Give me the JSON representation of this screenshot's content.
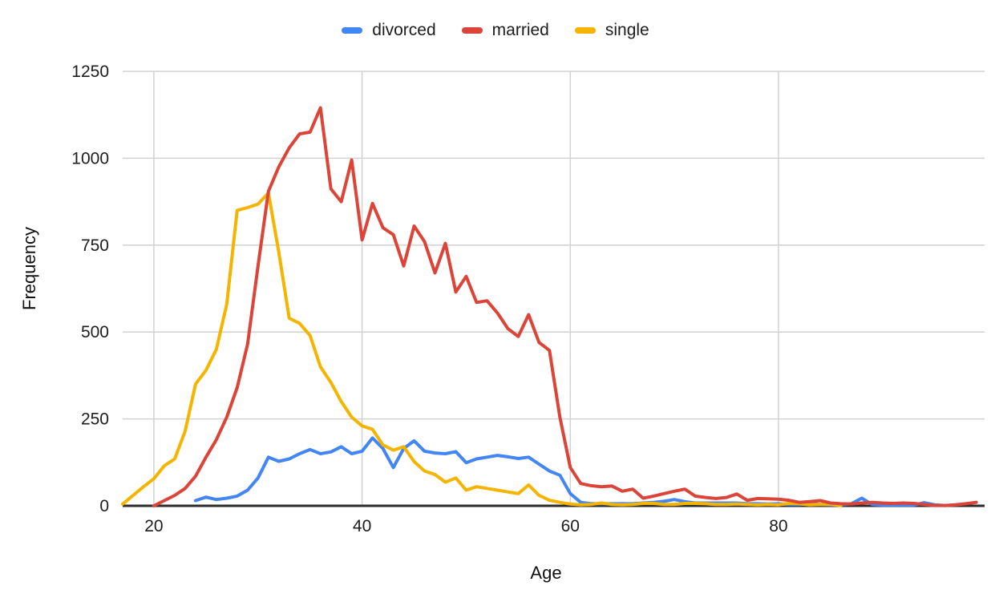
{
  "chart_data": {
    "type": "line",
    "title": "",
    "xlabel": "Age",
    "ylabel": "Frequency",
    "x_domain": [
      17,
      99.8
    ],
    "ylim": [
      0,
      1250
    ],
    "x_ticks": [
      20,
      40,
      60,
      80
    ],
    "y_ticks": [
      0,
      250,
      500,
      750,
      1000,
      1250
    ],
    "grid": true,
    "grid_color": "#d2d2d2",
    "axis_color": "#2b2b2b",
    "legend_position": "top",
    "series": [
      {
        "name": "divorced",
        "color": "#4285F4",
        "start_age": 24,
        "values": [
          15,
          25,
          18,
          22,
          28,
          45,
          80,
          140,
          128,
          135,
          150,
          162,
          150,
          155,
          170,
          150,
          157,
          195,
          165,
          110,
          165,
          187,
          157,
          152,
          150,
          156,
          124,
          135,
          140,
          145,
          141,
          136,
          140,
          120,
          100,
          88,
          35,
          10,
          6,
          6,
          6,
          6,
          6,
          8,
          10,
          13,
          18,
          12,
          8,
          8,
          8,
          8,
          8,
          6,
          6,
          5,
          6,
          4,
          4,
          6,
          4,
          3,
          3,
          6,
          22,
          4,
          2,
          2,
          2,
          2,
          9,
          3,
          1
        ]
      },
      {
        "name": "married",
        "color": "#DB4437",
        "start_age": 20,
        "values": [
          0,
          15,
          30,
          50,
          85,
          140,
          190,
          255,
          340,
          465,
          690,
          905,
          975,
          1030,
          1070,
          1075,
          1145,
          912,
          875,
          995,
          765,
          870,
          800,
          780,
          690,
          805,
          760,
          670,
          755,
          615,
          660,
          585,
          590,
          555,
          510,
          487,
          550,
          470,
          447,
          255,
          110,
          64,
          58,
          55,
          57,
          42,
          48,
          22,
          28,
          35,
          42,
          48,
          28,
          24,
          21,
          24,
          34,
          16,
          21,
          20,
          19,
          16,
          10,
          12,
          15,
          8,
          6,
          5,
          8,
          10,
          8,
          7,
          8,
          7,
          4,
          1,
          1,
          3,
          6,
          10
        ]
      },
      {
        "name": "single",
        "color": "#F4B400",
        "start_age": 17,
        "values": [
          5,
          30,
          55,
          78,
          115,
          135,
          215,
          350,
          390,
          450,
          580,
          850,
          858,
          868,
          900,
          730,
          540,
          525,
          490,
          400,
          355,
          300,
          255,
          230,
          220,
          175,
          160,
          170,
          127,
          100,
          90,
          68,
          80,
          45,
          55,
          50,
          45,
          40,
          35,
          60,
          30,
          16,
          10,
          5,
          3,
          4,
          8,
          4,
          3,
          4,
          7,
          7,
          4,
          4,
          7,
          7,
          6,
          4,
          4,
          5,
          4,
          3,
          4,
          3,
          7,
          6,
          3,
          4,
          4,
          1
        ]
      }
    ]
  }
}
